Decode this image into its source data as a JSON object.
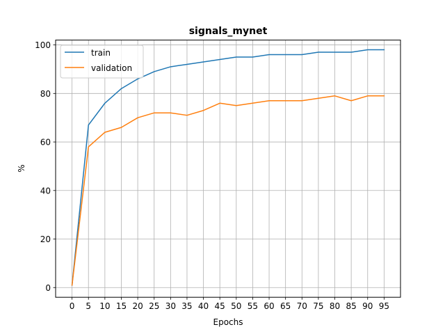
{
  "chart_data": {
    "type": "line",
    "title": "signals_mynet",
    "xlabel": "Epochs",
    "ylabel": "%",
    "x": [
      0,
      5,
      10,
      15,
      20,
      25,
      30,
      35,
      40,
      45,
      50,
      55,
      60,
      65,
      70,
      75,
      80,
      85,
      90,
      95
    ],
    "xticks": [
      "0",
      "5",
      "10",
      "15",
      "20",
      "25",
      "30",
      "35",
      "40",
      "45",
      "50",
      "55",
      "60",
      "65",
      "70",
      "75",
      "80",
      "85",
      "90",
      "95"
    ],
    "yticks": [
      "0",
      "20",
      "40",
      "60",
      "80",
      "100"
    ],
    "xlim": [
      -5,
      100
    ],
    "ylim": [
      -4,
      102
    ],
    "grid": true,
    "legend_position": "top-left",
    "series": [
      {
        "name": "train",
        "color": "#1f77b4",
        "values": [
          1,
          67,
          76,
          82,
          86,
          89,
          91,
          92,
          93,
          94,
          95,
          95,
          96,
          96,
          96,
          97,
          97,
          97,
          98,
          98
        ]
      },
      {
        "name": "validation",
        "color": "#ff7f0e",
        "values": [
          1,
          58,
          64,
          66,
          70,
          72,
          72,
          71,
          73,
          76,
          75,
          76,
          77,
          77,
          77,
          78,
          79,
          77,
          79,
          79
        ]
      }
    ]
  }
}
